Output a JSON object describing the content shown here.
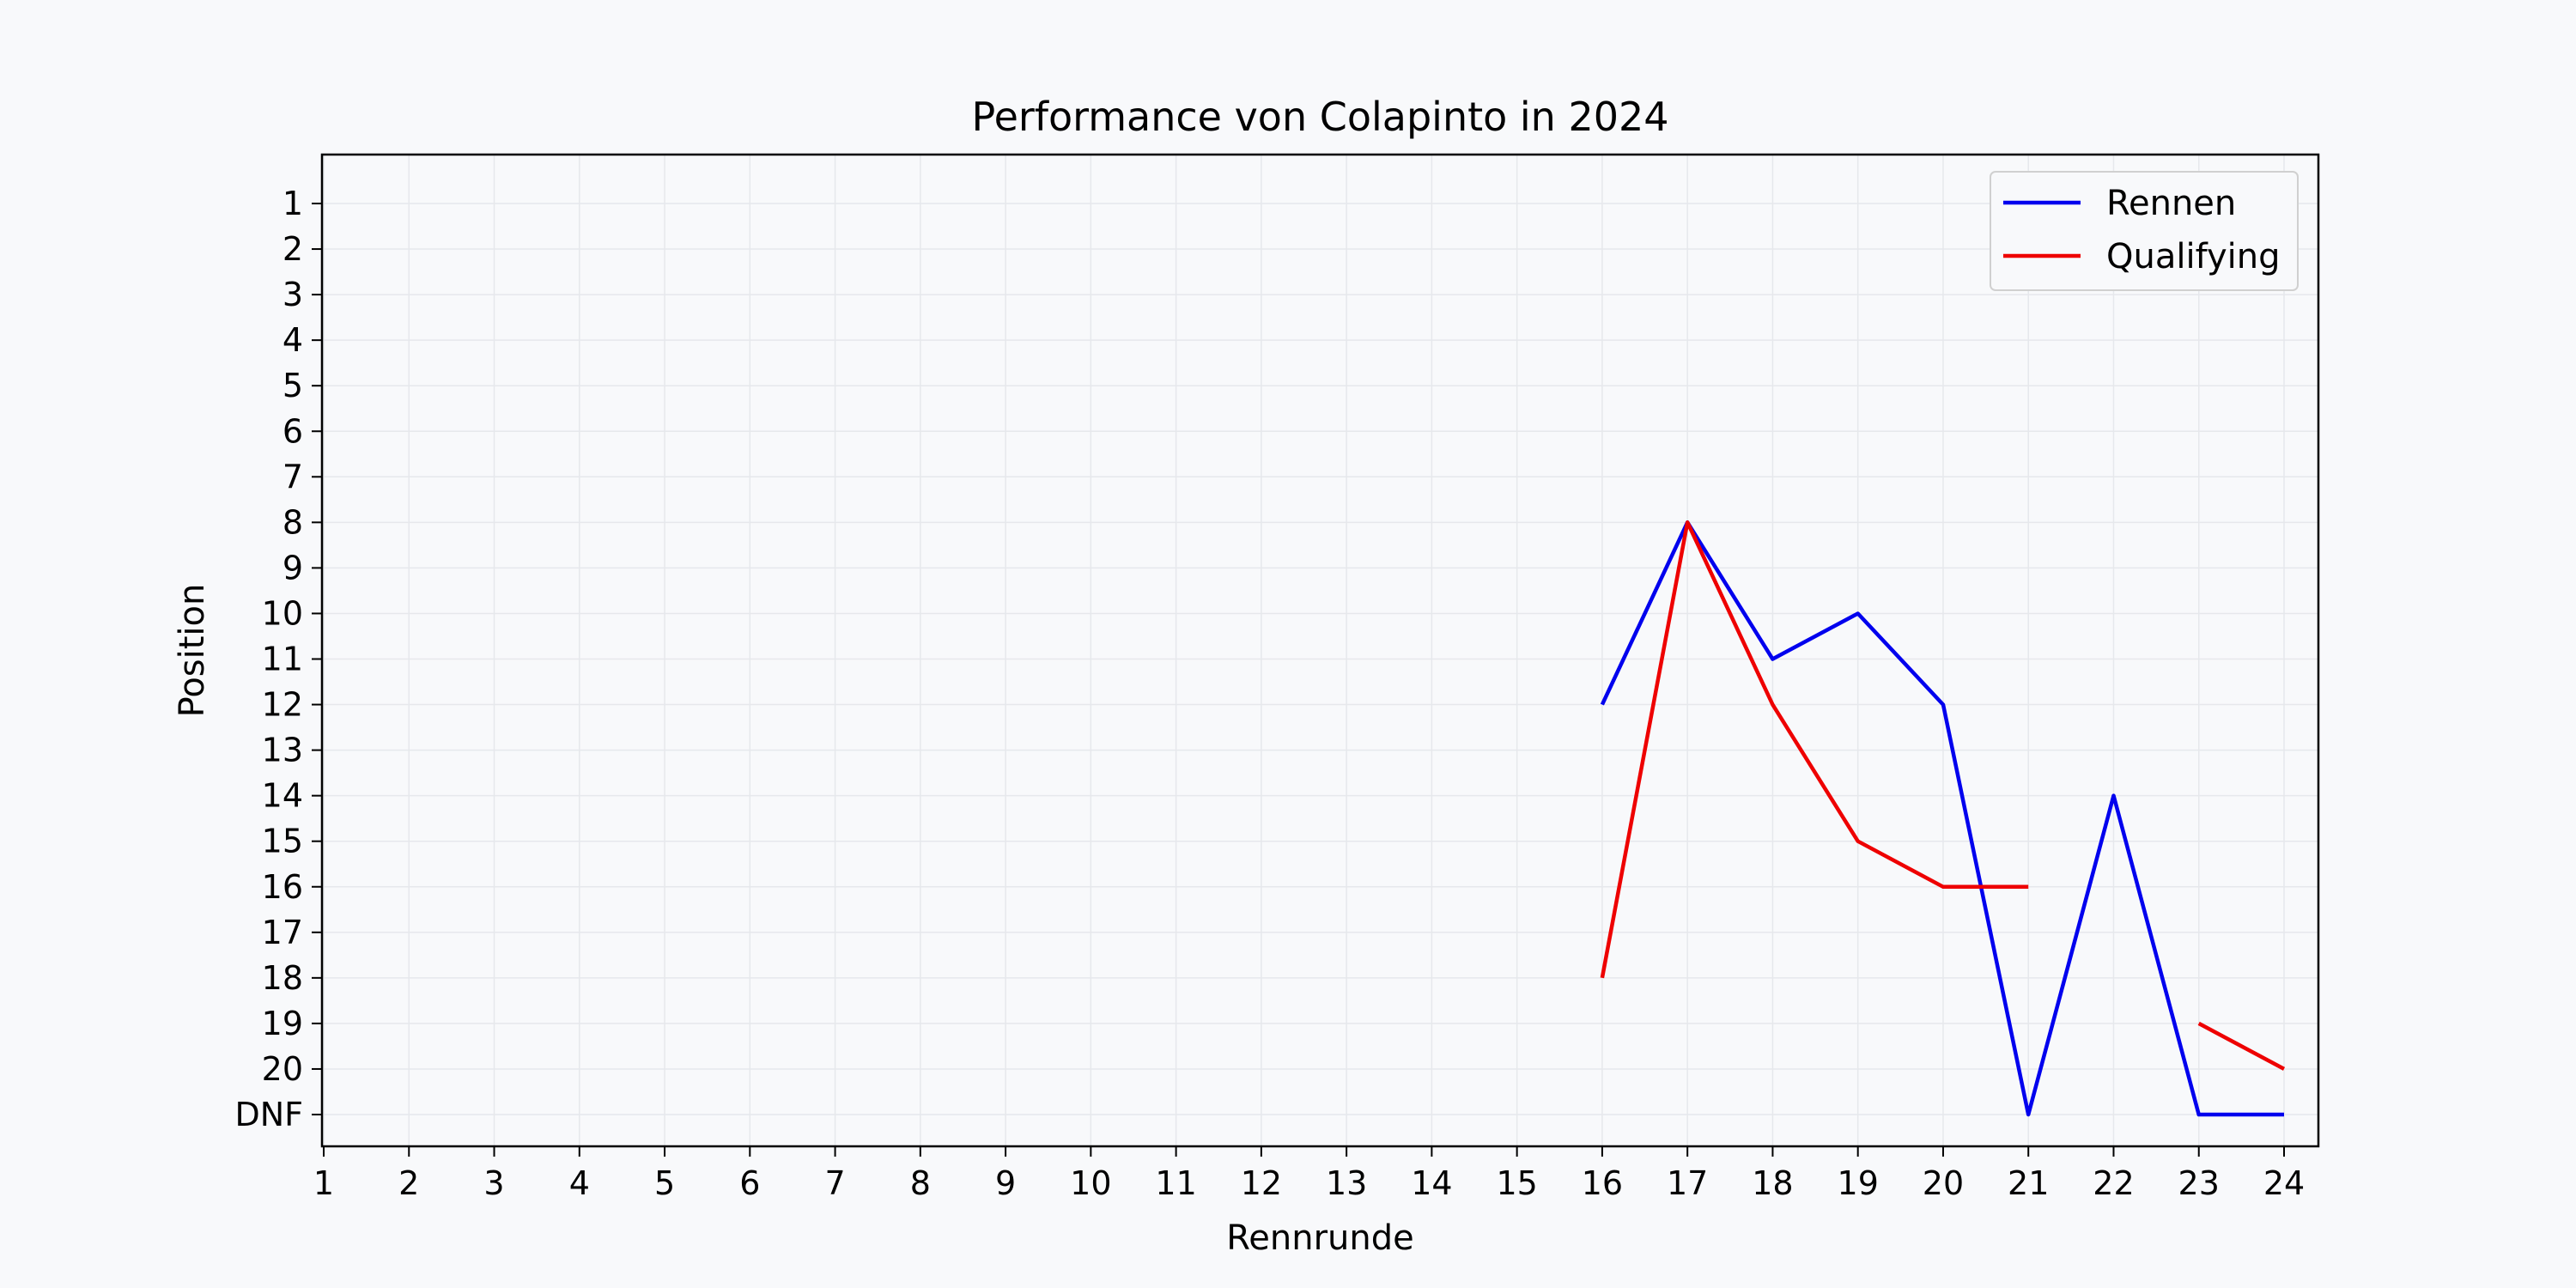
{
  "chart_data": {
    "type": "line",
    "title": "Performance von Colapinto in 2024",
    "xlabel": "Rennrunde",
    "ylabel": "Position",
    "x_ticks": [
      "1",
      "2",
      "3",
      "4",
      "5",
      "6",
      "7",
      "8",
      "9",
      "10",
      "11",
      "12",
      "13",
      "14",
      "15",
      "16",
      "17",
      "18",
      "19",
      "20",
      "21",
      "22",
      "23",
      "24"
    ],
    "y_ticks": [
      "1",
      "2",
      "3",
      "4",
      "5",
      "6",
      "7",
      "8",
      "9",
      "10",
      "11",
      "12",
      "13",
      "14",
      "15",
      "16",
      "17",
      "18",
      "19",
      "20",
      "DNF"
    ],
    "xlim": [
      1,
      24
    ],
    "ylim": [
      "1",
      "DNF"
    ],
    "y_inverted": true,
    "grid": true,
    "legend_position": "top-right",
    "series": [
      {
        "name": "Rennen",
        "color": "#0000ee",
        "points": [
          [
            16,
            "12"
          ],
          [
            17,
            "8"
          ],
          [
            18,
            "11"
          ],
          [
            19,
            "10"
          ],
          [
            20,
            "12"
          ],
          [
            21,
            "DNF"
          ],
          [
            22,
            "14"
          ],
          [
            23,
            "DNF"
          ],
          [
            24,
            "DNF"
          ]
        ]
      },
      {
        "name": "Qualifying",
        "color": "#ee0000",
        "points": [
          [
            16,
            "18"
          ],
          [
            17,
            "8"
          ],
          [
            18,
            "12"
          ],
          [
            19,
            "15"
          ],
          [
            20,
            "16"
          ],
          [
            21,
            "16"
          ],
          [
            23,
            "19"
          ],
          [
            24,
            "20"
          ]
        ]
      }
    ]
  }
}
